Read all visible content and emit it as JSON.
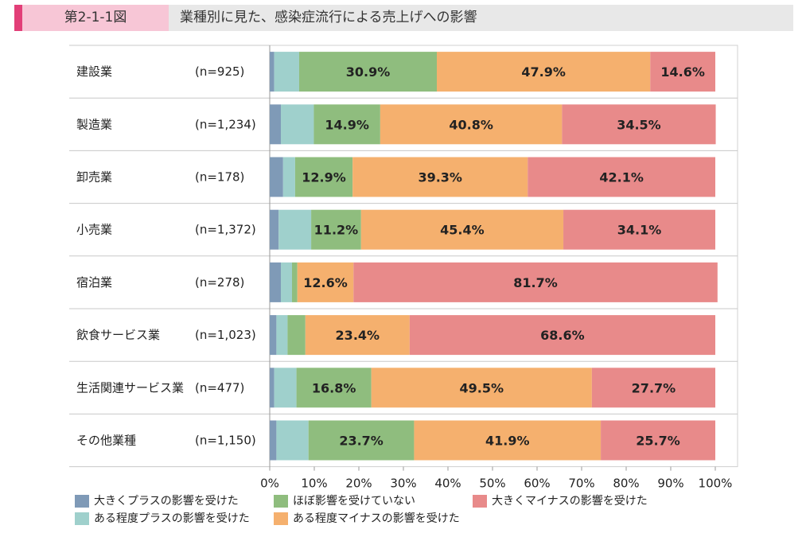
{
  "title": {
    "figure_label": "第2-1-1図",
    "text": "業種別に見た、感染症流行による売上げへの影響"
  },
  "colors": {
    "title_accent": "#e23f78",
    "title_label_bg": "#f7c6d6",
    "title_bg": "#e8e8e8"
  },
  "chart_data": {
    "type": "bar",
    "orientation": "horizontal",
    "stacked": true,
    "percent_stacked": true,
    "categories": [
      "建設業",
      "製造業",
      "卸売業",
      "小売業",
      "宿泊業",
      "飲食サービス業",
      "生活関連サービス業",
      "その他業種"
    ],
    "sample_sizes": [
      "(n=925)",
      "(n=1,234)",
      "(n=178)",
      "(n=1,372)",
      "(n=278)",
      "(n=1,023)",
      "(n=477)",
      "(n=1,150)"
    ],
    "series": [
      {
        "name": "大きくプラスの影響を受けた",
        "color": "#7f9ab7",
        "values": [
          1.0,
          2.5,
          3.0,
          2.0,
          2.5,
          1.5,
          1.0,
          1.5
        ],
        "labels": [
          "",
          "",
          "",
          "",
          "",
          "",
          "",
          ""
        ]
      },
      {
        "name": "ある程度プラスの影響を受けた",
        "color": "#9fd0cc",
        "values": [
          5.6,
          7.4,
          2.7,
          7.3,
          2.5,
          2.5,
          5.0,
          7.2
        ],
        "labels": [
          "",
          "",
          "",
          "",
          "",
          "",
          "",
          ""
        ]
      },
      {
        "name": "ほぼ影響を受けていない",
        "color": "#8fbd7e",
        "values": [
          30.9,
          14.9,
          12.9,
          11.2,
          1.2,
          4.0,
          16.8,
          23.7
        ],
        "labels": [
          "30.9%",
          "14.9%",
          "12.9%",
          "11.2%",
          "",
          "",
          "16.8%",
          "23.7%"
        ]
      },
      {
        "name": "ある程度マイナスの影響を受けた",
        "color": "#f5b06e",
        "values": [
          47.9,
          40.8,
          39.3,
          45.4,
          12.6,
          23.4,
          49.5,
          41.9
        ],
        "labels": [
          "47.9%",
          "40.8%",
          "39.3%",
          "45.4%",
          "12.6%",
          "23.4%",
          "49.5%",
          "41.9%"
        ]
      },
      {
        "name": "大きくマイナスの影響を受けた",
        "color": "#e88a8a",
        "values": [
          14.6,
          34.5,
          42.1,
          34.1,
          81.7,
          68.6,
          27.7,
          25.7
        ],
        "labels": [
          "14.6%",
          "34.5%",
          "42.1%",
          "34.1%",
          "81.7%",
          "68.6%",
          "27.7%",
          "25.7%"
        ]
      }
    ],
    "x_ticks": [
      "0%",
      "10%",
      "20%",
      "30%",
      "40%",
      "50%",
      "60%",
      "70%",
      "80%",
      "90%",
      "100%"
    ],
    "xlim": [
      0,
      100
    ],
    "legend_position": "bottom"
  }
}
